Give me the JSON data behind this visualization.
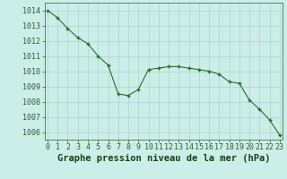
{
  "x": [
    0,
    1,
    2,
    3,
    4,
    5,
    6,
    7,
    8,
    9,
    10,
    11,
    12,
    13,
    14,
    15,
    16,
    17,
    18,
    19,
    20,
    21,
    22,
    23
  ],
  "y": [
    1014.0,
    1013.5,
    1012.8,
    1012.2,
    1011.8,
    1011.0,
    1010.4,
    1008.5,
    1008.4,
    1008.8,
    1010.1,
    1010.2,
    1010.3,
    1010.3,
    1010.2,
    1010.1,
    1010.0,
    1009.8,
    1009.3,
    1009.2,
    1008.1,
    1007.5,
    1006.8,
    1005.8
  ],
  "ylim": [
    1005.5,
    1014.5
  ],
  "yticks": [
    1006,
    1007,
    1008,
    1009,
    1010,
    1011,
    1012,
    1013,
    1014
  ],
  "xticks": [
    0,
    1,
    2,
    3,
    4,
    5,
    6,
    7,
    8,
    9,
    10,
    11,
    12,
    13,
    14,
    15,
    16,
    17,
    18,
    19,
    20,
    21,
    22,
    23
  ],
  "xlabel": "Graphe pression niveau de la mer (hPa)",
  "line_color": "#2d6a2d",
  "marker": "+",
  "marker_color": "#2d6a2d",
  "bg_color": "#cceee8",
  "grid_color": "#aad4ce",
  "tick_color": "#2d5a2d",
  "xlabel_color": "#1a3d1a",
  "tick_fontsize": 6.0,
  "xlabel_fontsize": 7.5
}
